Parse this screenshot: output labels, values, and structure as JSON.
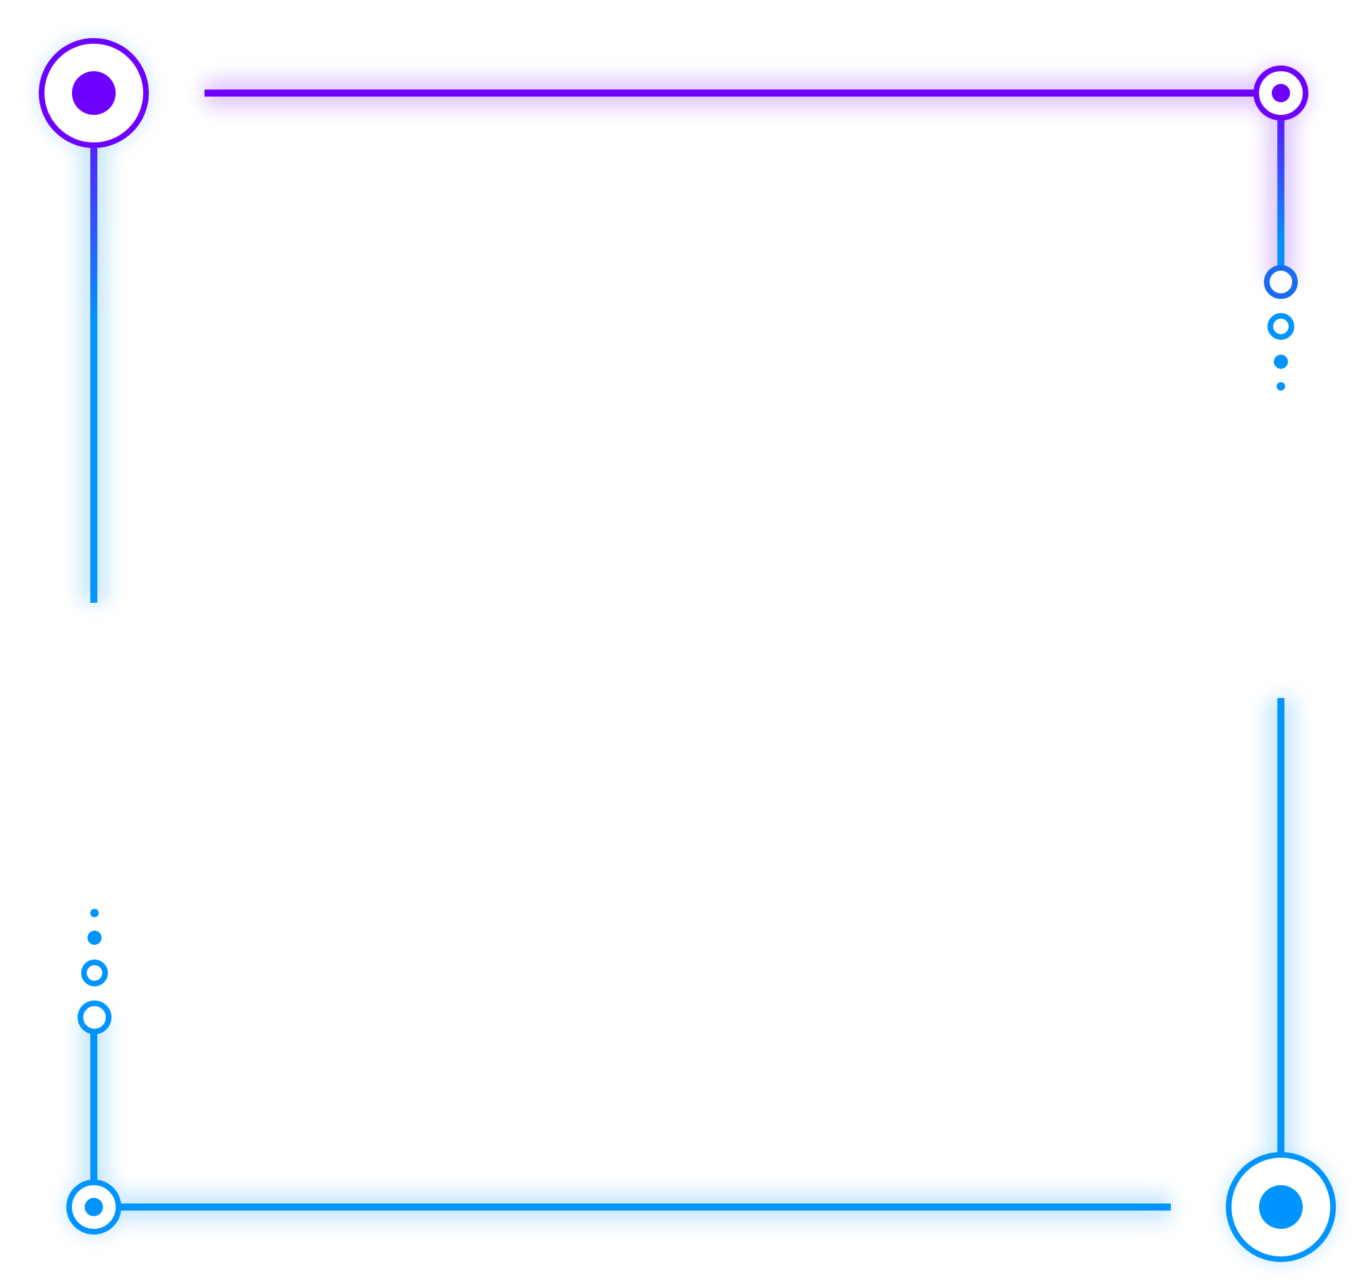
{
  "decoration": {
    "name": "gradient-circuit-frame",
    "colors": {
      "purple": "#6E00FF",
      "blue": "#0094FF",
      "glow": "#E6F4FF",
      "background": "#FFFFFF"
    }
  }
}
